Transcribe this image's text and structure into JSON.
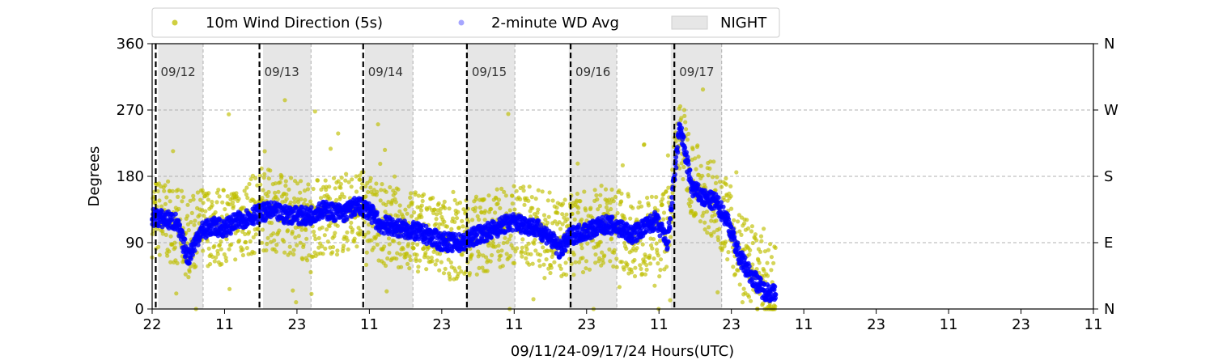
{
  "chart_data": {
    "type": "scatter",
    "title": "",
    "xlabel": "09/11/24-09/17/24  Hours(UTC)",
    "ylabel": "Degrees",
    "x_tick_labels": [
      "22",
      "11",
      "23",
      "11",
      "23",
      "11",
      "23",
      "11",
      "23",
      "11",
      "23",
      "11",
      "23",
      "11"
    ],
    "y_ticks": [
      0,
      90,
      180,
      270,
      360
    ],
    "y_tick_labels": [
      "0",
      "90",
      "180",
      "270",
      "360"
    ],
    "y2_tick_labels": [
      "N",
      "E",
      "S",
      "W",
      "N"
    ],
    "ylim": [
      0,
      360
    ],
    "xlim_hours": [
      0,
      157
    ],
    "legend": {
      "placement": "top-center",
      "entries": [
        {
          "label": "10m Wind Direction (5s)",
          "color": "#bfbf00",
          "kind": "marker"
        },
        {
          "label": "2-minute WD Avg",
          "color": "#0000ff",
          "kind": "marker"
        },
        {
          "label": "NIGHT",
          "color": "#e6e6e6",
          "kind": "patch"
        }
      ]
    },
    "night_periods_hours": [
      [
        1,
        8.5
      ],
      [
        18.5,
        26.5
      ],
      [
        35.5,
        43.5
      ],
      [
        52.5,
        60.5
      ],
      [
        69.5,
        77.5
      ],
      [
        86.5,
        95
      ]
    ],
    "day_markers": [
      {
        "label": "09/12",
        "hour": 0.6
      },
      {
        "label": "09/13",
        "hour": 17.9
      },
      {
        "label": "09/14",
        "hour": 35.2
      },
      {
        "label": "09/15",
        "hour": 52.5
      },
      {
        "label": "09/16",
        "hour": 69.8
      },
      {
        "label": "09/17",
        "hour": 87.1
      }
    ],
    "series": [
      {
        "name": "10m Wind Direction (5s)",
        "color": "#bfbf00",
        "hours": [
          0,
          2,
          4,
          6,
          8,
          10,
          12,
          14,
          16,
          18,
          20,
          22,
          24,
          26,
          28,
          30,
          32,
          34,
          36,
          38,
          40,
          42,
          44,
          46,
          48,
          50,
          52,
          54,
          56,
          58,
          60,
          62,
          64,
          66,
          68,
          70,
          72,
          74,
          76,
          78,
          80,
          82,
          84,
          86,
          88,
          90,
          92,
          94,
          96,
          98,
          100,
          102,
          104
        ],
        "center_deg": [
          125,
          120,
          115,
          95,
          110,
          115,
          110,
          118,
          125,
          132,
          135,
          128,
          125,
          120,
          125,
          128,
          130,
          135,
          130,
          115,
          112,
          108,
          105,
          100,
          95,
          95,
          92,
          100,
          105,
          110,
          115,
          115,
          110,
          105,
          95,
          100,
          105,
          110,
          115,
          110,
          100,
          95,
          100,
          110,
          240,
          180,
          160,
          150,
          120,
          80,
          60,
          40,
          30
        ],
        "spread_deg": 55
      },
      {
        "name": "2-minute WD Avg",
        "color": "#0000ff",
        "hours": [
          0,
          2,
          4,
          6,
          8,
          10,
          12,
          14,
          16,
          18,
          20,
          22,
          24,
          26,
          28,
          30,
          32,
          34,
          36,
          38,
          40,
          42,
          44,
          46,
          48,
          50,
          52,
          54,
          56,
          58,
          60,
          62,
          64,
          66,
          68,
          70,
          72,
          74,
          76,
          78,
          80,
          82,
          84,
          86,
          88,
          90,
          92,
          94,
          96,
          98,
          100,
          102,
          104
        ],
        "center_deg": [
          125,
          122,
          118,
          70,
          105,
          112,
          110,
          118,
          125,
          130,
          133,
          128,
          128,
          125,
          135,
          132,
          130,
          140,
          135,
          115,
          112,
          108,
          105,
          100,
          92,
          90,
          90,
          100,
          105,
          112,
          118,
          115,
          110,
          100,
          80,
          100,
          105,
          110,
          115,
          110,
          100,
          110,
          120,
          90,
          250,
          165,
          150,
          145,
          120,
          70,
          45,
          25,
          20
        ],
        "spread_deg": 12
      }
    ]
  }
}
